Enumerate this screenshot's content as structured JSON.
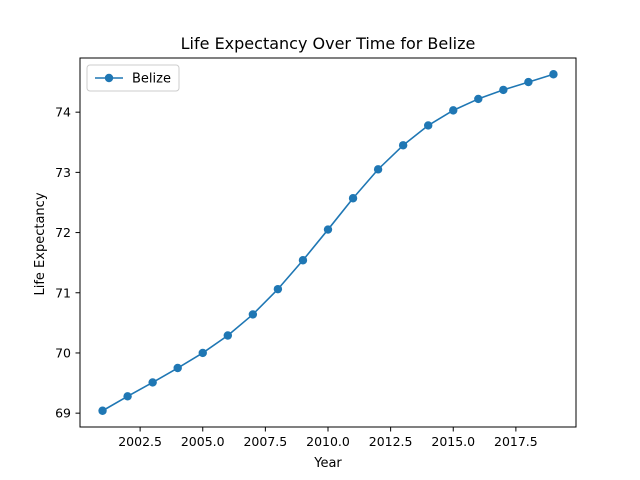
{
  "chart_data": {
    "type": "line",
    "title": "Life Expectancy Over Time for Belize",
    "xlabel": "Year",
    "ylabel": "Life Expectancy",
    "x": [
      2001,
      2002,
      2003,
      2004,
      2005,
      2006,
      2007,
      2008,
      2009,
      2010,
      2011,
      2012,
      2013,
      2014,
      2015,
      2016,
      2017,
      2018,
      2019
    ],
    "series": [
      {
        "name": "Belize",
        "color": "#1f77b4",
        "values": [
          69.04,
          69.28,
          69.51,
          69.75,
          70.0,
          70.29,
          70.64,
          71.06,
          71.54,
          72.05,
          72.57,
          73.05,
          73.45,
          73.78,
          74.03,
          74.22,
          74.37,
          74.5,
          74.63
        ]
      }
    ],
    "xlim": [
      2000.1,
      2019.9
    ],
    "ylim": [
      68.77,
      74.9
    ],
    "xticks": [
      2002.5,
      2005.0,
      2007.5,
      2010.0,
      2012.5,
      2015.0,
      2017.5
    ],
    "xtick_labels": [
      "2002.5",
      "2005.0",
      "2007.5",
      "2010.0",
      "2012.5",
      "2015.0",
      "2017.5"
    ],
    "yticks": [
      69,
      70,
      71,
      72,
      73,
      74
    ],
    "ytick_labels": [
      "69",
      "70",
      "71",
      "72",
      "73",
      "74"
    ],
    "legend_position": "top-left",
    "grid": false
  }
}
